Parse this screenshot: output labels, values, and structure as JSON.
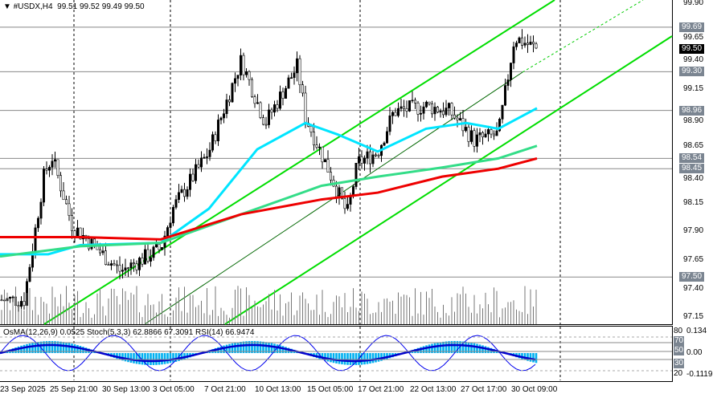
{
  "header": {
    "symbol": "#USDX,H4",
    "ohlc": "99.51 99.52 99.49 99.50"
  },
  "indicator": {
    "label": "OsMA(12,26,9) 0.0525  Stoch(5,3,3) 62.8866 67.3091  RSI(14) 66.9474"
  },
  "price_axis": [
    "99.90",
    "99.65",
    "99.40",
    "99.15",
    "98.90",
    "98.65",
    "98.40",
    "98.15",
    "97.90",
    "97.65",
    "97.40",
    "97.15"
  ],
  "price_tags": [
    {
      "v": "99.69"
    },
    {
      "v": "99.50",
      "current": true
    },
    {
      "v": "99.30"
    },
    {
      "v": "98.96"
    },
    {
      "v": "98.54"
    },
    {
      "v": "98.45"
    },
    {
      "v": "97.50"
    }
  ],
  "ind_axis": [
    "0.134",
    "80",
    "70",
    "50",
    "0.00",
    "30",
    "20",
    "-0.1119"
  ],
  "time_axis": [
    "23 Sep 2025",
    "25 Sep 21:00",
    "30 Sep 13:00",
    "3 Oct 05:00",
    "7 Oct 21:00",
    "10 Oct 13:00",
    "15 Oct 05:00",
    "17 Oct 21:00",
    "22 Oct 13:00",
    "27 Oct 17:00",
    "30 Oct 09:00"
  ],
  "colors": {
    "bull": "#000000",
    "ma_fast": "#00e5ff",
    "ma_mid": "#33dd88",
    "ma_slow": "#ee0000",
    "channel": "#00dd00",
    "osma": "#00b0f0"
  },
  "chart_data": {
    "type": "candlestick",
    "ylim": [
      97.15,
      99.9
    ],
    "close_path": [
      97.3,
      97.3,
      98.4,
      98.55,
      97.95,
      97.55,
      97.75,
      98.1,
      98.6,
      99.4,
      98.85,
      99.35,
      98.9,
      98.5,
      98.05,
      98.5,
      98.6,
      98.95,
      99.0,
      98.95,
      98.7,
      98.75,
      99.6,
      99.5
    ]
  }
}
